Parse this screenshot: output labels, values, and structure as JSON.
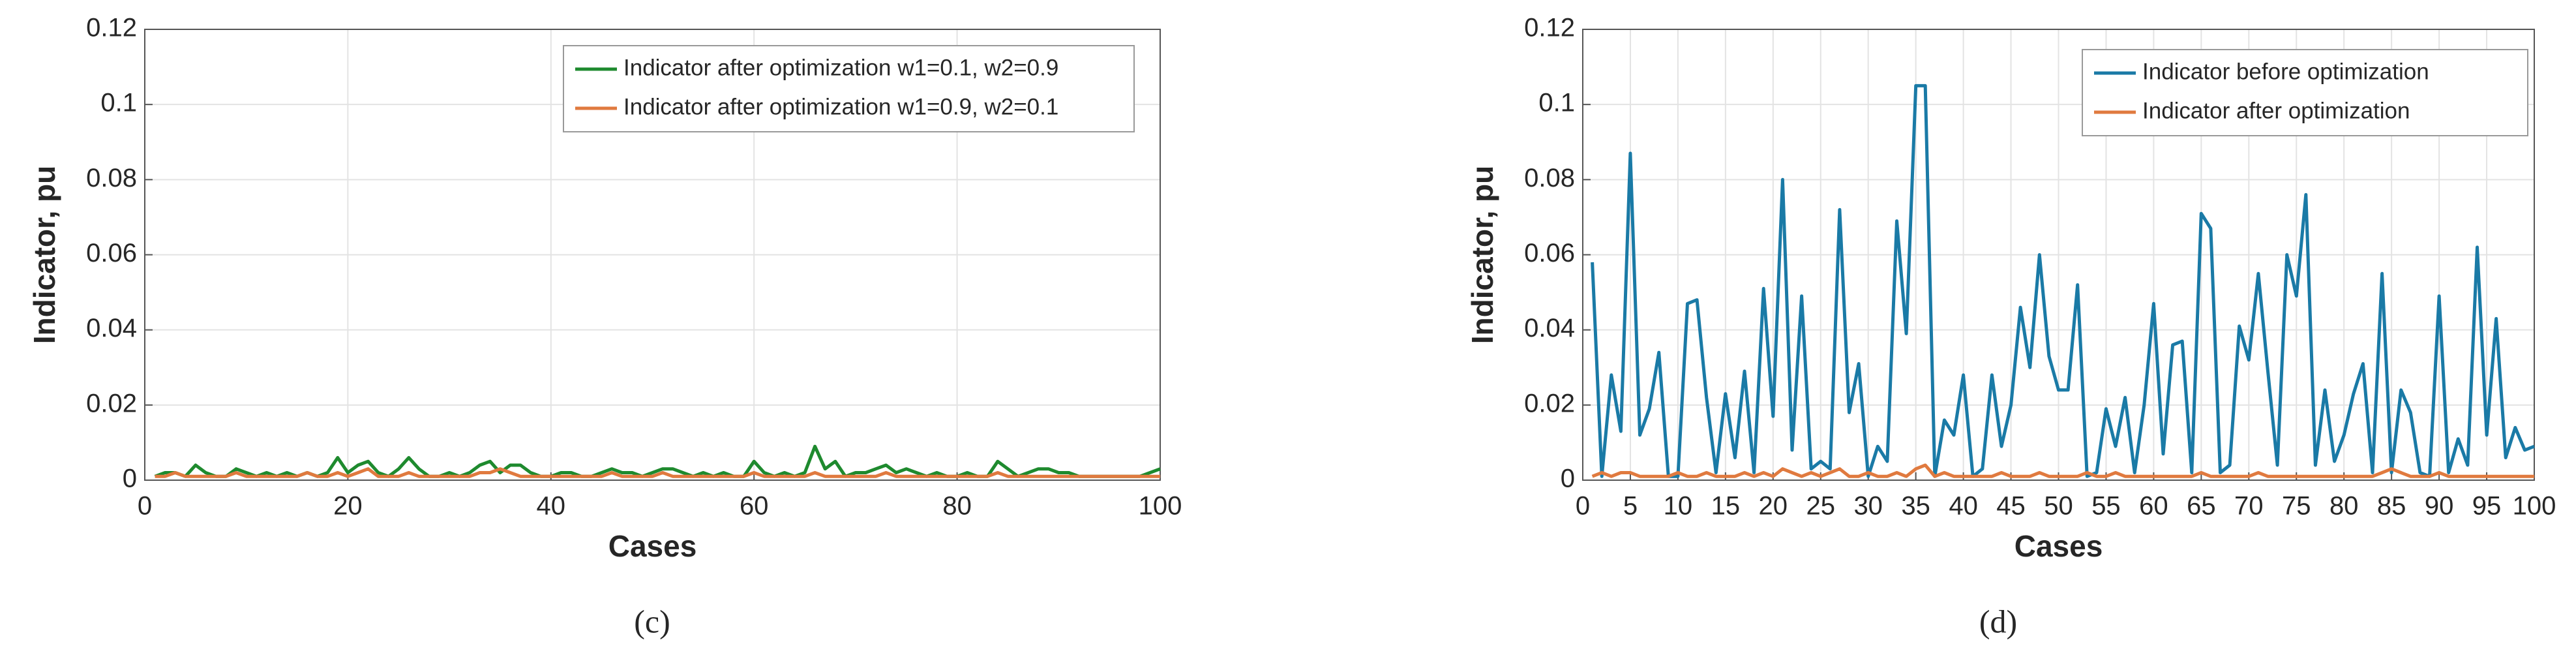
{
  "chart_data": [
    {
      "type": "line",
      "caption": "(c)",
      "x_label": "Cases",
      "y_label": "Indicator, pu",
      "xlim": [
        0,
        100
      ],
      "xticks": [
        0,
        20,
        40,
        60,
        80,
        100
      ],
      "ylim": [
        0,
        0.12
      ],
      "yticks": [
        0,
        0.02,
        0.04,
        0.06,
        0.08,
        0.1,
        0.12
      ],
      "grid": true,
      "legend": "upper right",
      "x": [
        1,
        2,
        3,
        4,
        5,
        6,
        7,
        8,
        9,
        10,
        11,
        12,
        13,
        14,
        15,
        16,
        17,
        18,
        19,
        20,
        21,
        22,
        23,
        24,
        25,
        26,
        27,
        28,
        29,
        30,
        31,
        32,
        33,
        34,
        35,
        36,
        37,
        38,
        39,
        40,
        41,
        42,
        43,
        44,
        45,
        46,
        47,
        48,
        49,
        50,
        51,
        52,
        53,
        54,
        55,
        56,
        57,
        58,
        59,
        60,
        61,
        62,
        63,
        64,
        65,
        66,
        67,
        68,
        69,
        70,
        71,
        72,
        73,
        74,
        75,
        76,
        77,
        78,
        79,
        80,
        81,
        82,
        83,
        84,
        85,
        86,
        87,
        88,
        89,
        90,
        91,
        92,
        93,
        94,
        95,
        96,
        97,
        98,
        99,
        100
      ],
      "series": [
        {
          "name": "Indicator after optimization w1=0.1, w2=0.9",
          "color": "#1e8a2e",
          "values": [
            0.001,
            0.002,
            0.002,
            0.001,
            0.004,
            0.002,
            0.001,
            0.001,
            0.003,
            0.002,
            0.001,
            0.002,
            0.001,
            0.002,
            0.001,
            0.002,
            0.001,
            0.002,
            0.006,
            0.002,
            0.004,
            0.005,
            0.002,
            0.001,
            0.003,
            0.006,
            0.003,
            0.001,
            0.001,
            0.002,
            0.001,
            0.002,
            0.004,
            0.005,
            0.002,
            0.004,
            0.004,
            0.002,
            0.001,
            0.001,
            0.002,
            0.002,
            0.001,
            0.001,
            0.002,
            0.003,
            0.002,
            0.002,
            0.001,
            0.002,
            0.003,
            0.003,
            0.002,
            0.001,
            0.002,
            0.001,
            0.002,
            0.001,
            0.001,
            0.005,
            0.002,
            0.001,
            0.002,
            0.001,
            0.002,
            0.009,
            0.003,
            0.005,
            0.001,
            0.002,
            0.002,
            0.003,
            0.004,
            0.002,
            0.003,
            0.002,
            0.001,
            0.002,
            0.001,
            0.001,
            0.002,
            0.001,
            0.001,
            0.005,
            0.003,
            0.001,
            0.002,
            0.003,
            0.003,
            0.002,
            0.002,
            0.001,
            0.001,
            0.001,
            0.001,
            0.001,
            0.001,
            0.001,
            0.002,
            0.003
          ]
        },
        {
          "name": "Indicator after optimization w1=0.9, w2=0.1",
          "color": "#e07a3f",
          "values": [
            0.001,
            0.001,
            0.002,
            0.001,
            0.001,
            0.001,
            0.001,
            0.001,
            0.002,
            0.001,
            0.001,
            0.001,
            0.001,
            0.001,
            0.001,
            0.002,
            0.001,
            0.001,
            0.002,
            0.001,
            0.002,
            0.003,
            0.001,
            0.001,
            0.001,
            0.002,
            0.001,
            0.001,
            0.001,
            0.001,
            0.001,
            0.001,
            0.002,
            0.002,
            0.003,
            0.002,
            0.001,
            0.001,
            0.001,
            0.001,
            0.001,
            0.001,
            0.001,
            0.001,
            0.001,
            0.002,
            0.001,
            0.001,
            0.001,
            0.001,
            0.002,
            0.001,
            0.001,
            0.001,
            0.001,
            0.001,
            0.001,
            0.001,
            0.001,
            0.002,
            0.001,
            0.001,
            0.001,
            0.001,
            0.001,
            0.002,
            0.001,
            0.001,
            0.001,
            0.001,
            0.001,
            0.001,
            0.002,
            0.001,
            0.001,
            0.001,
            0.001,
            0.001,
            0.001,
            0.001,
            0.001,
            0.001,
            0.001,
            0.002,
            0.001,
            0.001,
            0.001,
            0.001,
            0.001,
            0.001,
            0.001,
            0.001,
            0.001,
            0.001,
            0.001,
            0.001,
            0.001,
            0.001,
            0.001,
            0.001
          ]
        }
      ]
    },
    {
      "type": "line",
      "caption": "(d)",
      "x_label": "Cases",
      "y_label": "Indicator, pu",
      "xlim": [
        0,
        100
      ],
      "xticks": [
        0,
        5,
        10,
        15,
        20,
        25,
        30,
        35,
        40,
        45,
        50,
        55,
        60,
        65,
        70,
        75,
        80,
        85,
        90,
        95,
        100
      ],
      "ylim": [
        0,
        0.12
      ],
      "yticks": [
        0,
        0.02,
        0.04,
        0.06,
        0.08,
        0.1,
        0.12
      ],
      "grid": true,
      "legend": "upper right",
      "x": [
        1,
        2,
        3,
        4,
        5,
        6,
        7,
        8,
        9,
        10,
        11,
        12,
        13,
        14,
        15,
        16,
        17,
        18,
        19,
        20,
        21,
        22,
        23,
        24,
        25,
        26,
        27,
        28,
        29,
        30,
        31,
        32,
        33,
        34,
        35,
        36,
        37,
        38,
        39,
        40,
        41,
        42,
        43,
        44,
        45,
        46,
        47,
        48,
        49,
        50,
        51,
        52,
        53,
        54,
        55,
        56,
        57,
        58,
        59,
        60,
        61,
        62,
        63,
        64,
        65,
        66,
        67,
        68,
        69,
        70,
        71,
        72,
        73,
        74,
        75,
        76,
        77,
        78,
        79,
        80,
        81,
        82,
        83,
        84,
        85,
        86,
        87,
        88,
        89,
        90,
        91,
        92,
        93,
        94,
        95,
        96,
        97,
        98,
        99,
        100
      ],
      "series": [
        {
          "name": "Indicator before optimization",
          "color": "#1a7aa6",
          "values": [
            0.058,
            0.001,
            0.028,
            0.013,
            0.087,
            0.012,
            0.019,
            0.034,
            0.001,
            0.001,
            0.047,
            0.048,
            0.022,
            0.002,
            0.023,
            0.006,
            0.029,
            0.002,
            0.051,
            0.017,
            0.08,
            0.008,
            0.049,
            0.003,
            0.005,
            0.003,
            0.072,
            0.018,
            0.031,
            0.001,
            0.009,
            0.005,
            0.069,
            0.039,
            0.105,
            0.105,
            0.001,
            0.016,
            0.012,
            0.028,
            0.001,
            0.003,
            0.028,
            0.009,
            0.02,
            0.046,
            0.03,
            0.06,
            0.033,
            0.024,
            0.024,
            0.052,
            0.001,
            0.002,
            0.019,
            0.009,
            0.022,
            0.002,
            0.02,
            0.047,
            0.007,
            0.036,
            0.037,
            0.002,
            0.071,
            0.067,
            0.002,
            0.004,
            0.041,
            0.032,
            0.055,
            0.029,
            0.004,
            0.06,
            0.049,
            0.076,
            0.004,
            0.024,
            0.005,
            0.012,
            0.023,
            0.031,
            0.002,
            0.055,
            0.002,
            0.024,
            0.018,
            0.002,
            0.001,
            0.049,
            0.002,
            0.011,
            0.004,
            0.062,
            0.012,
            0.043,
            0.006,
            0.014,
            0.008,
            0.009
          ]
        },
        {
          "name": "Indicator after optimization",
          "color": "#e07a3f",
          "values": [
            0.001,
            0.002,
            0.001,
            0.002,
            0.002,
            0.001,
            0.001,
            0.001,
            0.001,
            0.002,
            0.001,
            0.001,
            0.002,
            0.001,
            0.001,
            0.001,
            0.002,
            0.001,
            0.002,
            0.001,
            0.003,
            0.002,
            0.001,
            0.002,
            0.001,
            0.002,
            0.003,
            0.001,
            0.001,
            0.002,
            0.001,
            0.001,
            0.002,
            0.001,
            0.003,
            0.004,
            0.001,
            0.002,
            0.001,
            0.001,
            0.001,
            0.001,
            0.001,
            0.002,
            0.001,
            0.001,
            0.001,
            0.002,
            0.001,
            0.001,
            0.001,
            0.001,
            0.002,
            0.001,
            0.001,
            0.002,
            0.001,
            0.001,
            0.001,
            0.001,
            0.001,
            0.001,
            0.001,
            0.001,
            0.002,
            0.001,
            0.001,
            0.001,
            0.001,
            0.001,
            0.002,
            0.001,
            0.001,
            0.001,
            0.001,
            0.001,
            0.001,
            0.001,
            0.001,
            0.001,
            0.001,
            0.001,
            0.001,
            0.002,
            0.003,
            0.002,
            0.001,
            0.001,
            0.001,
            0.002,
            0.001,
            0.001,
            0.001,
            0.001,
            0.001,
            0.001,
            0.001,
            0.001,
            0.001,
            0.001
          ]
        }
      ]
    }
  ]
}
